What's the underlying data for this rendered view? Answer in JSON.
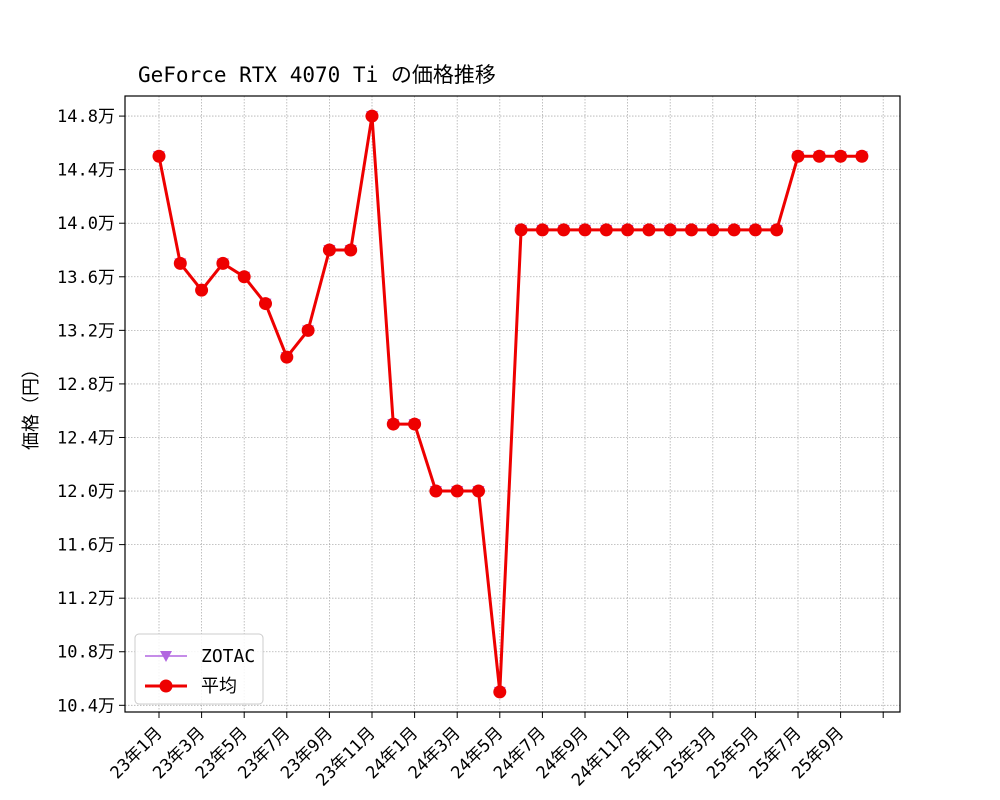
{
  "chart_data": {
    "type": "line",
    "title": "GeForce RTX 4070 Ti の価格推移",
    "xlabel": "",
    "ylabel": "価格（円）",
    "ylim": [
      103500,
      149500
    ],
    "yticks": [
      104000,
      108000,
      112000,
      116000,
      120000,
      124000,
      128000,
      132000,
      136000,
      140000,
      144000,
      148000
    ],
    "ytick_labels": [
      "10.4万",
      "10.8万",
      "11.2万",
      "11.6万",
      "12.0万",
      "12.4万",
      "12.8万",
      "13.2万",
      "13.6万",
      "14.0万",
      "14.4万",
      "14.8万"
    ],
    "x_categories": [
      "23年1月",
      "23年2月",
      "23年3月",
      "23年4月",
      "23年5月",
      "23年6月",
      "23年7月",
      "23年8月",
      "23年9月",
      "23年10月",
      "23年11月",
      "23年12月",
      "24年1月",
      "24年2月",
      "24年3月",
      "24年4月",
      "24年5月",
      "24年6月",
      "24年7月",
      "24年8月",
      "24年9月",
      "24年10月",
      "24年11月",
      "24年12月",
      "25年1月",
      "25年2月",
      "25年3月",
      "25年4月",
      "25年5月",
      "25年6月",
      "25年7月",
      "25年8月",
      "25年9月",
      "25年10月"
    ],
    "xtick_labels": [
      "23年1月",
      "23年3月",
      "23年5月",
      "23年7月",
      "23年9月",
      "23年11月",
      "24年1月",
      "24年3月",
      "24年5月",
      "24年7月",
      "24年9月",
      "24年11月",
      "25年1月",
      "25年3月",
      "25年5月",
      "25年7月",
      "25年9月"
    ],
    "grid": true,
    "legend_position": "lower-left",
    "series": [
      {
        "name": "ZOTAC",
        "color": "#b266e0",
        "marker": "triangle-down",
        "values": [
          145000,
          137000,
          135000,
          137000,
          136000,
          134000,
          130000,
          132000,
          138000,
          138000,
          148000,
          125000,
          125000,
          120000,
          120000,
          120000,
          105000,
          139500,
          139500,
          139500,
          139500,
          139500,
          139500,
          139500,
          139500,
          139500,
          139500,
          139500,
          139500,
          139500,
          145000,
          145000,
          145000,
          145000
        ]
      },
      {
        "name": "平均",
        "color": "#ee0000",
        "marker": "circle",
        "values": [
          145000,
          137000,
          135000,
          137000,
          136000,
          134000,
          130000,
          132000,
          138000,
          138000,
          148000,
          125000,
          125000,
          120000,
          120000,
          120000,
          105000,
          139500,
          139500,
          139500,
          139500,
          139500,
          139500,
          139500,
          139500,
          139500,
          139500,
          139500,
          139500,
          139500,
          145000,
          145000,
          145000,
          145000
        ]
      }
    ]
  }
}
